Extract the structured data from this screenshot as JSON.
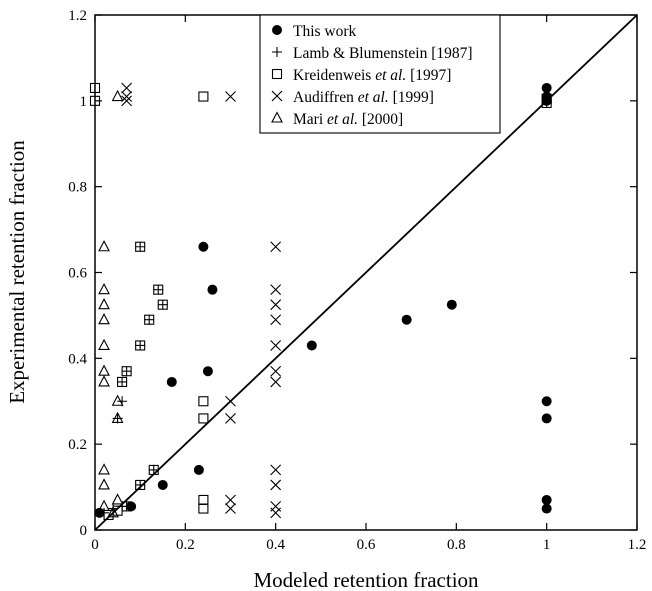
{
  "chart_data": {
    "type": "scatter",
    "title": "",
    "xlabel": "Modeled retention fraction",
    "ylabel": "Experimental retention fraction",
    "xlim": [
      0,
      1.2
    ],
    "ylim": [
      0,
      1.2
    ],
    "xticks": [
      "0",
      "0.2",
      "0.4",
      "0.6",
      "0.8",
      "1",
      "1.2"
    ],
    "yticks": [
      "0",
      "0.2",
      "0.4",
      "0.6",
      "0.8",
      "1",
      "1.2"
    ],
    "grid": false,
    "legend_position": "top-center",
    "reference_line": {
      "from": [
        0,
        0
      ],
      "to": [
        1.2,
        1.2
      ]
    },
    "series": [
      {
        "name": "This work",
        "legend_parts": [
          {
            "text": "This work",
            "italic": false
          }
        ],
        "marker": "filled-circle",
        "points": [
          [
            0.01,
            0.04
          ],
          [
            0.08,
            0.055
          ],
          [
            0.15,
            0.105
          ],
          [
            0.23,
            0.14
          ],
          [
            0.17,
            0.345
          ],
          [
            0.25,
            0.37
          ],
          [
            0.24,
            0.66
          ],
          [
            0.26,
            0.56
          ],
          [
            0.48,
            0.43
          ],
          [
            0.69,
            0.49
          ],
          [
            0.79,
            0.525
          ],
          [
            1.0,
            0.05
          ],
          [
            1.0,
            0.07
          ],
          [
            1.0,
            0.26
          ],
          [
            1.0,
            0.3
          ],
          [
            1.0,
            1.0
          ],
          [
            1.0,
            1.01
          ],
          [
            1.0,
            1.03
          ]
        ]
      },
      {
        "name": "Lamb & Blumenstein [1987]",
        "legend_parts": [
          {
            "text": "Lamb & Blumenstein [1987]",
            "italic": false
          }
        ],
        "marker": "plus",
        "points": [
          [
            0.02,
            0.04
          ],
          [
            0.04,
            0.05
          ],
          [
            0.06,
            0.055
          ],
          [
            0.07,
            0.055
          ],
          [
            0.1,
            0.105
          ],
          [
            0.13,
            0.14
          ],
          [
            0.06,
            0.345
          ],
          [
            0.07,
            0.37
          ],
          [
            0.06,
            0.3
          ],
          [
            0.05,
            0.26
          ],
          [
            0.1,
            0.43
          ],
          [
            0.12,
            0.49
          ],
          [
            0.15,
            0.525
          ],
          [
            0.14,
            0.56
          ],
          [
            0.1,
            0.66
          ],
          [
            1.0,
            0.995
          ],
          [
            1.0,
            1.0
          ]
        ]
      },
      {
        "name": "Kreidenweis et al. [1997]",
        "legend_parts": [
          {
            "text": "Kreidenweis ",
            "italic": false
          },
          {
            "text": "et al.",
            "italic": true
          },
          {
            "text": " [1997]",
            "italic": false
          }
        ],
        "marker": "open-square",
        "points": [
          [
            0.0,
            1.0
          ],
          [
            0.0,
            1.03
          ],
          [
            0.24,
            1.01
          ],
          [
            0.1,
            0.66
          ],
          [
            0.14,
            0.56
          ],
          [
            0.15,
            0.525
          ],
          [
            0.12,
            0.49
          ],
          [
            0.1,
            0.43
          ],
          [
            0.07,
            0.37
          ],
          [
            0.06,
            0.345
          ],
          [
            0.24,
            0.3
          ],
          [
            0.24,
            0.26
          ],
          [
            0.13,
            0.14
          ],
          [
            0.1,
            0.105
          ],
          [
            0.07,
            0.055
          ],
          [
            0.05,
            0.045
          ],
          [
            0.03,
            0.035
          ],
          [
            0.24,
            0.07
          ],
          [
            0.24,
            0.05
          ],
          [
            1.0,
            0.995
          ],
          [
            1.0,
            1.005
          ]
        ]
      },
      {
        "name": "Audiffren et al. [1999]",
        "legend_parts": [
          {
            "text": "Audiffren ",
            "italic": false
          },
          {
            "text": "et al.",
            "italic": true
          },
          {
            "text": " [1999]",
            "italic": false
          }
        ],
        "marker": "cross",
        "points": [
          [
            0.07,
            1.0
          ],
          [
            0.07,
            1.01
          ],
          [
            0.07,
            1.03
          ],
          [
            0.3,
            1.01
          ],
          [
            0.4,
            0.66
          ],
          [
            0.4,
            0.56
          ],
          [
            0.4,
            0.525
          ],
          [
            0.4,
            0.49
          ],
          [
            0.4,
            0.43
          ],
          [
            0.4,
            0.37
          ],
          [
            0.4,
            0.345
          ],
          [
            0.3,
            0.3
          ],
          [
            0.3,
            0.26
          ],
          [
            0.4,
            0.14
          ],
          [
            0.4,
            0.105
          ],
          [
            0.3,
            0.07
          ],
          [
            0.3,
            0.05
          ],
          [
            0.4,
            0.055
          ],
          [
            0.4,
            0.04
          ]
        ]
      },
      {
        "name": "Mari et al. [2000]",
        "legend_parts": [
          {
            "text": "Mari ",
            "italic": false
          },
          {
            "text": "et al.",
            "italic": true
          },
          {
            "text": " [2000]",
            "italic": false
          }
        ],
        "marker": "open-triangle",
        "points": [
          [
            0.05,
            1.01
          ],
          [
            0.02,
            0.66
          ],
          [
            0.02,
            0.56
          ],
          [
            0.02,
            0.525
          ],
          [
            0.02,
            0.49
          ],
          [
            0.02,
            0.43
          ],
          [
            0.02,
            0.37
          ],
          [
            0.02,
            0.345
          ],
          [
            0.05,
            0.3
          ],
          [
            0.05,
            0.26
          ],
          [
            0.02,
            0.14
          ],
          [
            0.02,
            0.105
          ],
          [
            0.02,
            0.055
          ],
          [
            0.05,
            0.07
          ],
          [
            0.04,
            0.04
          ]
        ]
      }
    ]
  }
}
